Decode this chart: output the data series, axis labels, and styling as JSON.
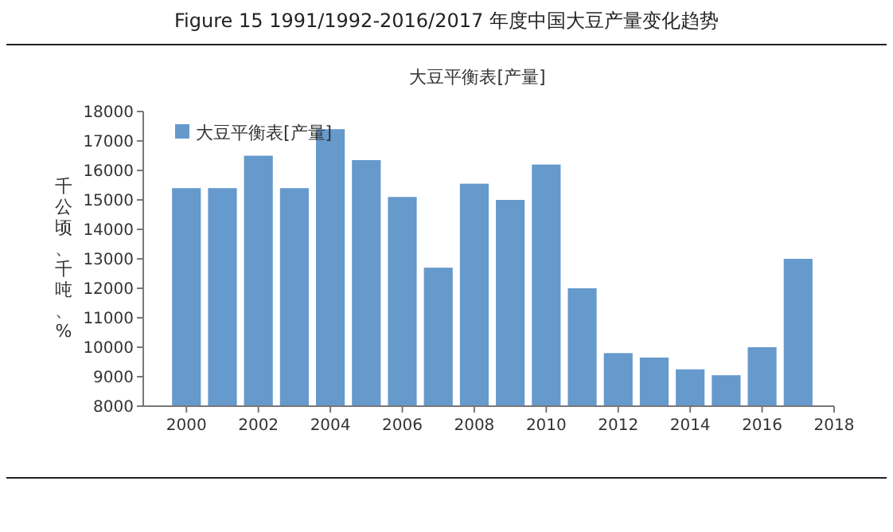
{
  "chart_data": {
    "type": "bar",
    "title": "Figure 15 1991/1992-2016/2017 年度中国大豆产量变化趋势",
    "subtitle": "大豆平衡表[产量]",
    "ylabel": "千公顷、千吨、%",
    "x": [
      2000,
      2001,
      2002,
      2003,
      2004,
      2005,
      2006,
      2007,
      2008,
      2009,
      2010,
      2011,
      2012,
      2013,
      2014,
      2015,
      2016,
      2017
    ],
    "series": [
      {
        "name": "大豆平衡表[产量]",
        "color": "#6699cc",
        "values": [
          15400,
          15400,
          16500,
          15400,
          17400,
          16350,
          15100,
          12700,
          15550,
          15000,
          16200,
          12000,
          9800,
          9650,
          9250,
          9050,
          10000,
          13000
        ]
      }
    ],
    "xlim": [
      1998.8,
      2018
    ],
    "xticks": [
      2000,
      2002,
      2004,
      2006,
      2008,
      2010,
      2012,
      2014,
      2016,
      2018
    ],
    "ylim": [
      8000,
      18000
    ],
    "yticks": [
      8000,
      9000,
      10000,
      11000,
      12000,
      13000,
      14000,
      15000,
      16000,
      17000,
      18000
    ],
    "grid": false,
    "legend": "top left"
  }
}
